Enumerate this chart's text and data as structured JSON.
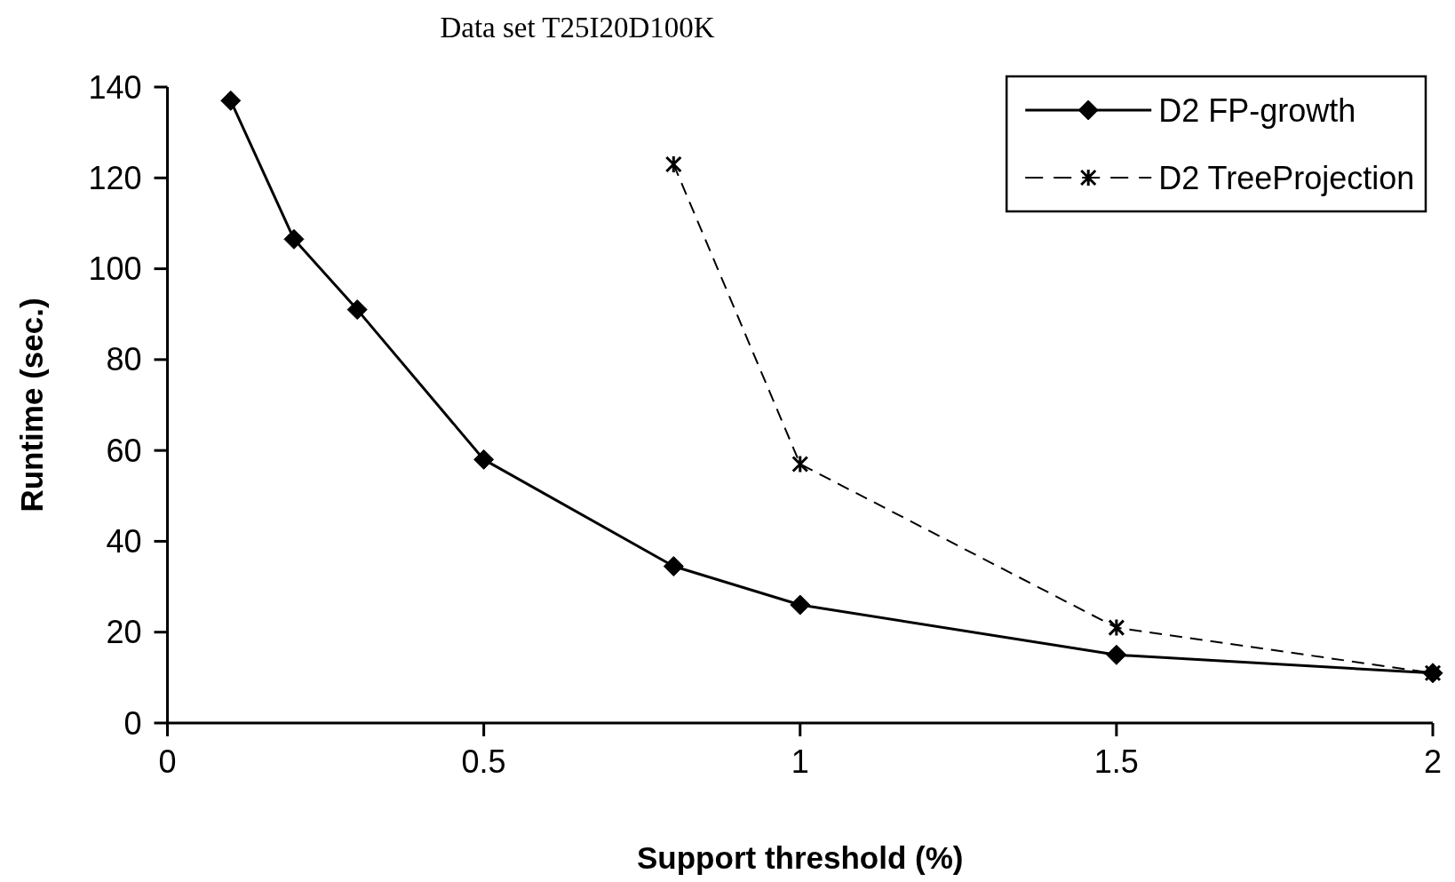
{
  "chart_data": {
    "type": "line",
    "title": "Data set T25I20D100K",
    "xlabel": "Support threshold (%)",
    "ylabel": "Runtime (sec.)",
    "xlim": [
      0,
      2
    ],
    "xticks": [
      0,
      0.5,
      1,
      1.5,
      2
    ],
    "ylim": [
      0,
      140
    ],
    "yticks": [
      0,
      20,
      40,
      60,
      80,
      100,
      120,
      140
    ],
    "legend": "top right",
    "series": [
      {
        "name": "D2 FP-growth",
        "color": "#000000",
        "marker": "diamond",
        "line_style": "solid",
        "x": [
          0.1,
          0.2,
          0.3,
          0.5,
          0.8,
          1,
          1.5,
          2
        ],
        "values": [
          137,
          106.5,
          91,
          58,
          34.5,
          26,
          15,
          11
        ]
      },
      {
        "name": "D2 TreeProjection",
        "color": "#000000",
        "marker": "cross",
        "line_style": "dashed",
        "x": [
          0.8,
          1,
          1.5,
          2
        ],
        "values": [
          123,
          57,
          21,
          11
        ]
      }
    ]
  }
}
